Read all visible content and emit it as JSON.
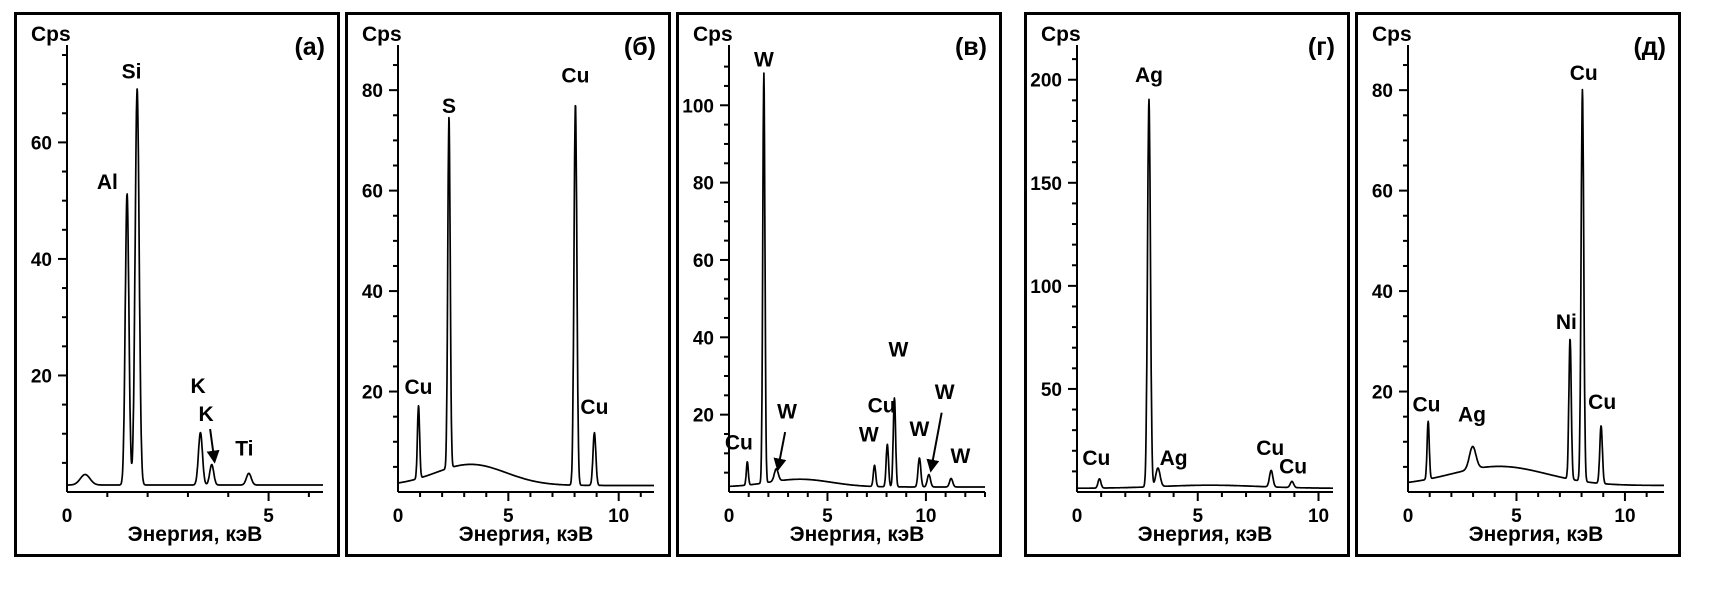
{
  "figure": {
    "background": "#ffffff",
    "line_color": "#000000",
    "description": "Five EDS X-ray spectra panels"
  },
  "chart_data": [
    {
      "type": "line",
      "panel_label": "(а)",
      "ylabel": "Cps",
      "xlabel": "Энергия, кэВ",
      "xlim": [
        0,
        6.35
      ],
      "ylim": [
        0,
        75
      ],
      "xticks": [
        0,
        5
      ],
      "yticks": [
        20,
        40,
        60
      ],
      "xminor_step": 1,
      "yminor_step": 5,
      "baseline": 1.2,
      "peaks": [
        {
          "element": "background",
          "x": 0.45,
          "height": 1.8,
          "sigma": 0.12
        },
        {
          "element": "Al",
          "x": 1.49,
          "height": 50,
          "sigma": 0.045
        },
        {
          "element": "Si",
          "x": 1.74,
          "height": 68,
          "sigma": 0.05
        },
        {
          "element": "K",
          "x": 3.31,
          "height": 9,
          "sigma": 0.05
        },
        {
          "element": "K",
          "x": 3.59,
          "height": 3.5,
          "sigma": 0.05
        },
        {
          "element": "Ti",
          "x": 4.51,
          "height": 2,
          "sigma": 0.06
        }
      ],
      "peak_labels": [
        {
          "text": "Si",
          "x": 1.6,
          "y": 71
        },
        {
          "text": "Al",
          "x": 1.0,
          "y": 52
        },
        {
          "text": "K",
          "x": 3.25,
          "y": 17
        },
        {
          "text": "K",
          "x": 3.45,
          "y": 12.2
        },
        {
          "text": "Ti",
          "x": 4.4,
          "y": 6.3
        }
      ],
      "arrows": [
        {
          "x1": 3.55,
          "y1": 10.8,
          "x2": 3.66,
          "y2": 5.2
        }
      ]
    },
    {
      "type": "line",
      "panel_label": "(б)",
      "ylabel": "Cps",
      "xlabel": "Энергия, кэВ",
      "xlim": [
        0,
        11.6
      ],
      "ylim": [
        0,
        87
      ],
      "xticks": [
        0,
        5,
        10
      ],
      "yticks": [
        20,
        40,
        60,
        80
      ],
      "xminor_step": 1,
      "yminor_step": 5,
      "baseline": 1.3,
      "peaks": [
        {
          "element": "Cu",
          "x": 0.93,
          "height": 14.5,
          "sigma": 0.05
        },
        {
          "element": "S",
          "x": 2.31,
          "height": 70,
          "sigma": 0.055
        },
        {
          "element": "background",
          "x": 3.3,
          "height": 4.2,
          "sigma": 1.6
        },
        {
          "element": "Cu",
          "x": 8.04,
          "height": 76,
          "sigma": 0.065
        },
        {
          "element": "Cu",
          "x": 8.9,
          "height": 10.5,
          "sigma": 0.065
        }
      ],
      "peak_labels": [
        {
          "text": "Cu",
          "x": 0.93,
          "y": 19.5
        },
        {
          "text": "S",
          "x": 2.31,
          "y": 75.5
        },
        {
          "text": "Cu",
          "x": 8.04,
          "y": 81.5
        },
        {
          "text": "Cu",
          "x": 8.9,
          "y": 15.5
        }
      ],
      "arrows": []
    },
    {
      "type": "line",
      "panel_label": "(в)",
      "ylabel": "Cps",
      "xlabel": "Энергия, кэВ",
      "xlim": [
        0,
        13
      ],
      "ylim": [
        0,
        113
      ],
      "xticks": [
        0,
        5,
        10
      ],
      "yticks": [
        20,
        40,
        60,
        80,
        100
      ],
      "xminor_step": 1,
      "yminor_step": 5,
      "baseline": 1.3,
      "peaks": [
        {
          "element": "Cu",
          "x": 0.93,
          "height": 6,
          "sigma": 0.05
        },
        {
          "element": "W",
          "x": 1.77,
          "height": 106,
          "sigma": 0.055
        },
        {
          "element": "W",
          "x": 2.4,
          "height": 3.2,
          "sigma": 0.1
        },
        {
          "element": "background",
          "x": 3.6,
          "height": 2.0,
          "sigma": 1.6
        },
        {
          "element": "W",
          "x": 7.39,
          "height": 5.5,
          "sigma": 0.06
        },
        {
          "element": "Cu",
          "x": 8.04,
          "height": 11,
          "sigma": 0.06
        },
        {
          "element": "W",
          "x": 8.4,
          "height": 23,
          "sigma": 0.06
        },
        {
          "element": "W",
          "x": 9.67,
          "height": 7.5,
          "sigma": 0.07
        },
        {
          "element": "W",
          "x": 10.15,
          "height": 3.2,
          "sigma": 0.08
        },
        {
          "element": "W",
          "x": 11.28,
          "height": 2.2,
          "sigma": 0.08
        }
      ],
      "peak_labels": [
        {
          "text": "Cu",
          "x": 0.5,
          "y": 11
        },
        {
          "text": "W",
          "x": 1.77,
          "y": 110
        },
        {
          "text": "W",
          "x": 2.95,
          "y": 19
        },
        {
          "text": "W",
          "x": 7.1,
          "y": 13
        },
        {
          "text": "Cu",
          "x": 7.75,
          "y": 20.5
        },
        {
          "text": "W",
          "x": 8.6,
          "y": 35
        },
        {
          "text": "W",
          "x": 9.67,
          "y": 14.5
        },
        {
          "text": "W",
          "x": 10.95,
          "y": 24
        },
        {
          "text": "W",
          "x": 11.75,
          "y": 7.5
        }
      ],
      "arrows": [
        {
          "x1": 2.85,
          "y1": 15.5,
          "x2": 2.48,
          "y2": 5.8
        },
        {
          "x1": 10.8,
          "y1": 20.5,
          "x2": 10.25,
          "y2": 5.5
        }
      ]
    },
    {
      "type": "line",
      "panel_label": "(г)",
      "ylabel": "Cps",
      "xlabel": "Энергия, кэВ",
      "xlim": [
        0,
        10.6
      ],
      "ylim": [
        0,
        212
      ],
      "xticks": [
        0,
        5,
        10
      ],
      "yticks": [
        50,
        100,
        150,
        200
      ],
      "xminor_step": 1,
      "yminor_step": 10,
      "baseline": 1.8,
      "peaks": [
        {
          "element": "Cu",
          "x": 0.93,
          "height": 4.5,
          "sigma": 0.06
        },
        {
          "element": "Ag",
          "x": 2.98,
          "height": 188,
          "sigma": 0.06
        },
        {
          "element": "Ag",
          "x": 3.35,
          "height": 9,
          "sigma": 0.09
        },
        {
          "element": "background",
          "x": 5.5,
          "height": 1.5,
          "sigma": 2.0
        },
        {
          "element": "Cu",
          "x": 8.04,
          "height": 8,
          "sigma": 0.07
        },
        {
          "element": "Cu",
          "x": 8.9,
          "height": 3,
          "sigma": 0.07
        }
      ],
      "peak_labels": [
        {
          "text": "Cu",
          "x": 0.8,
          "y": 13
        },
        {
          "text": "Ag",
          "x": 2.98,
          "y": 199
        },
        {
          "text": "Ag",
          "x": 4.0,
          "y": 13
        },
        {
          "text": "Cu",
          "x": 8.0,
          "y": 18
        },
        {
          "text": "Cu",
          "x": 8.95,
          "y": 9
        }
      ],
      "arrows": []
    },
    {
      "type": "line",
      "panel_label": "(д)",
      "ylabel": "Cps",
      "xlabel": "Энергия, кэВ",
      "xlim": [
        0,
        11.8
      ],
      "ylim": [
        0,
        87
      ],
      "xticks": [
        0,
        5,
        10
      ],
      "yticks": [
        20,
        40,
        60,
        80
      ],
      "xminor_step": 1,
      "yminor_step": 5,
      "baseline": 1.3,
      "peaks": [
        {
          "element": "Cu",
          "x": 0.93,
          "height": 11.5,
          "sigma": 0.05
        },
        {
          "element": "Ag",
          "x": 2.98,
          "height": 4.5,
          "sigma": 0.15
        },
        {
          "element": "background",
          "x": 4.2,
          "height": 3.8,
          "sigma": 2.2
        },
        {
          "element": "Ni",
          "x": 7.47,
          "height": 28,
          "sigma": 0.055
        },
        {
          "element": "Cu",
          "x": 8.04,
          "height": 78,
          "sigma": 0.06
        },
        {
          "element": "Cu",
          "x": 8.9,
          "height": 11.5,
          "sigma": 0.06
        }
      ],
      "peak_labels": [
        {
          "text": "Cu",
          "x": 0.85,
          "y": 16
        },
        {
          "text": "Ag",
          "x": 2.95,
          "y": 14
        },
        {
          "text": "Ni",
          "x": 7.3,
          "y": 32.5
        },
        {
          "text": "Cu",
          "x": 8.1,
          "y": 82
        },
        {
          "text": "Cu",
          "x": 8.95,
          "y": 16.5
        }
      ],
      "arrows": []
    }
  ]
}
